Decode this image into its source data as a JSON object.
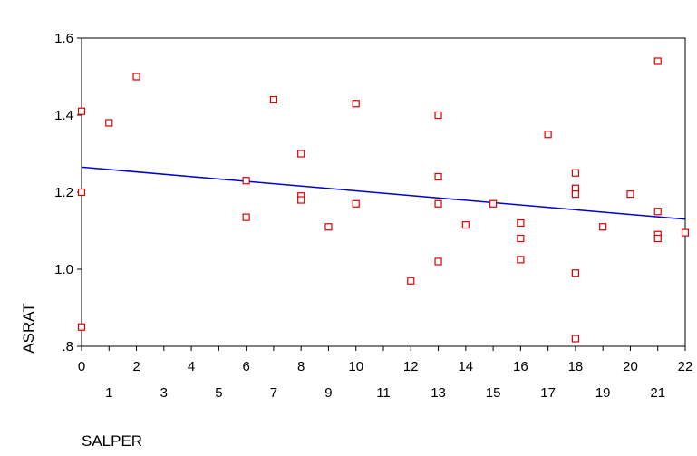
{
  "chart_data": {
    "type": "scatter",
    "title": "",
    "xlabel": "SALPER",
    "ylabel": "ASRAT",
    "xlim": [
      0,
      22
    ],
    "ylim": [
      0.8,
      1.6
    ],
    "x_ticks_top_row": [
      "0",
      "2",
      "4",
      "6",
      "8",
      "10",
      "12",
      "14",
      "16",
      "18",
      "20",
      "22"
    ],
    "x_ticks_bottom_row": [
      "1",
      "3",
      "5",
      "7",
      "9",
      "11",
      "13",
      "15",
      "17",
      "19",
      "21"
    ],
    "y_ticks": [
      {
        "value": 0.8,
        "label": ".8"
      },
      {
        "value": 1.0,
        "label": "1.0"
      },
      {
        "value": 1.2,
        "label": "1.2"
      },
      {
        "value": 1.4,
        "label": "1.4"
      },
      {
        "value": 1.6,
        "label": "1.6"
      }
    ],
    "grid": false,
    "legend": "none",
    "marker_color": "#dd0000",
    "fit_line_color": "#0000cc",
    "points": [
      {
        "x": 0,
        "y": 1.41
      },
      {
        "x": 0,
        "y": 1.2
      },
      {
        "x": 0,
        "y": 0.85
      },
      {
        "x": 1,
        "y": 1.38
      },
      {
        "x": 2,
        "y": 1.5
      },
      {
        "x": 6,
        "y": 1.23
      },
      {
        "x": 6,
        "y": 1.135
      },
      {
        "x": 7,
        "y": 1.44
      },
      {
        "x": 8,
        "y": 1.3
      },
      {
        "x": 8,
        "y": 1.19
      },
      {
        "x": 8,
        "y": 1.18
      },
      {
        "x": 9,
        "y": 1.11
      },
      {
        "x": 10,
        "y": 1.43
      },
      {
        "x": 10,
        "y": 1.17
      },
      {
        "x": 12,
        "y": 0.97
      },
      {
        "x": 13,
        "y": 1.4
      },
      {
        "x": 13,
        "y": 1.24
      },
      {
        "x": 13,
        "y": 1.17
      },
      {
        "x": 13,
        "y": 1.02
      },
      {
        "x": 14,
        "y": 1.115
      },
      {
        "x": 15,
        "y": 1.17
      },
      {
        "x": 16,
        "y": 1.12
      },
      {
        "x": 16,
        "y": 1.08
      },
      {
        "x": 16,
        "y": 1.025
      },
      {
        "x": 17,
        "y": 1.35
      },
      {
        "x": 18,
        "y": 1.25
      },
      {
        "x": 18,
        "y": 1.21
      },
      {
        "x": 18,
        "y": 1.195
      },
      {
        "x": 18,
        "y": 0.99
      },
      {
        "x": 18,
        "y": 0.82
      },
      {
        "x": 19,
        "y": 1.11
      },
      {
        "x": 20,
        "y": 1.195
      },
      {
        "x": 21,
        "y": 1.54
      },
      {
        "x": 21,
        "y": 1.15
      },
      {
        "x": 21,
        "y": 1.09
      },
      {
        "x": 21,
        "y": 1.08
      },
      {
        "x": 22,
        "y": 1.095
      }
    ],
    "fit_line": {
      "x": [
        0,
        22
      ],
      "y": [
        1.265,
        1.13
      ]
    }
  }
}
